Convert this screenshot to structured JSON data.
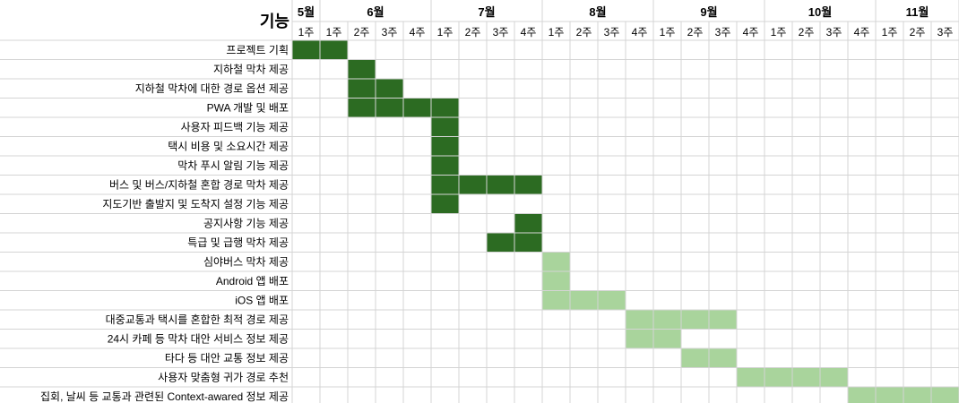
{
  "chart_data": {
    "type": "gantt",
    "header_label": "기능",
    "months": [
      {
        "label": "5월",
        "weeks": 1
      },
      {
        "label": "6월",
        "weeks": 4
      },
      {
        "label": "7월",
        "weeks": 4
      },
      {
        "label": "8월",
        "weeks": 4
      },
      {
        "label": "9월",
        "weeks": 4
      },
      {
        "label": "10월",
        "weeks": 4
      },
      {
        "label": "11월",
        "weeks": 3
      }
    ],
    "weeks": [
      "1주",
      "1주",
      "2주",
      "3주",
      "4주",
      "1주",
      "2주",
      "3주",
      "4주",
      "1주",
      "2주",
      "3주",
      "4주",
      "1주",
      "2주",
      "3주",
      "4주",
      "1주",
      "2주",
      "3주",
      "4주",
      "1주",
      "2주",
      "3주"
    ],
    "tasks": [
      {
        "name": "프로젝트 기획",
        "start": 0,
        "end": 1,
        "phase": "dark"
      },
      {
        "name": "지하철 막차 제공",
        "start": 2,
        "end": 2,
        "phase": "dark"
      },
      {
        "name": "지하철 막차에 대한 경로 옵션 제공",
        "start": 2,
        "end": 3,
        "phase": "dark"
      },
      {
        "name": "PWA 개발 및 배포",
        "start": 2,
        "end": 5,
        "phase": "dark"
      },
      {
        "name": "사용자 피드백 기능 제공",
        "start": 5,
        "end": 5,
        "phase": "dark"
      },
      {
        "name": "택시 비용 및 소요시간 제공",
        "start": 5,
        "end": 5,
        "phase": "dark"
      },
      {
        "name": "막차 푸시 알림 기능 제공",
        "start": 5,
        "end": 5,
        "phase": "dark"
      },
      {
        "name": "버스 및 버스/지하철 혼합 경로 막차 제공",
        "start": 5,
        "end": 8,
        "phase": "dark"
      },
      {
        "name": "지도기반 출발지 및 도착지 설정 기능 제공",
        "start": 5,
        "end": 5,
        "phase": "dark"
      },
      {
        "name": "공지사항 기능 제공",
        "start": 8,
        "end": 8,
        "phase": "dark"
      },
      {
        "name": "특급 및 급행 막차 제공",
        "start": 7,
        "end": 8,
        "phase": "dark"
      },
      {
        "name": "심야버스 막차 제공",
        "start": 9,
        "end": 9,
        "phase": "light"
      },
      {
        "name": "Android 앱 배포",
        "start": 9,
        "end": 9,
        "phase": "light"
      },
      {
        "name": "iOS 앱 배포",
        "start": 9,
        "end": 11,
        "phase": "light"
      },
      {
        "name": "대중교통과 택시를 혼합한 최적 경로 제공",
        "start": 12,
        "end": 15,
        "phase": "light"
      },
      {
        "name": "24시 카페 등 막차 대안 서비스 정보 제공",
        "start": 12,
        "end": 13,
        "phase": "light"
      },
      {
        "name": "타다 등 대안 교통 정보 제공",
        "start": 14,
        "end": 15,
        "phase": "light"
      },
      {
        "name": "사용자 맞춤형 귀가 경로 추천",
        "start": 16,
        "end": 19,
        "phase": "light"
      },
      {
        "name": "집회, 날씨 등 교통과 관련된 Context-awared 정보 제공",
        "start": 20,
        "end": 23,
        "phase": "light"
      }
    ],
    "colors": {
      "dark": "#2c6b22",
      "light": "#a9d49c",
      "grid": "#d4d4d4"
    }
  }
}
